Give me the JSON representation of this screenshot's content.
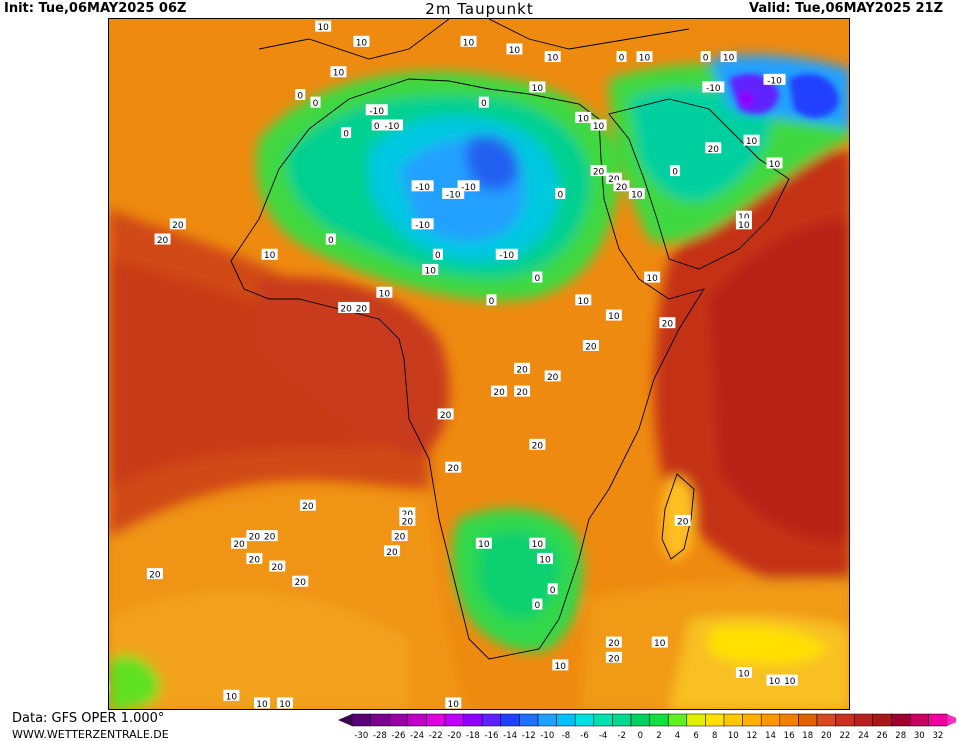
{
  "header": {
    "init": "Init: Tue,06MAY2025 06Z",
    "title": "2m Taupunkt",
    "valid": "Valid: Tue,06MAY2025 21Z"
  },
  "footer": {
    "source": "Data: GFS OPER 1.000°",
    "site": "WWW.WETTERZENTRALE.DE"
  },
  "legend": {
    "ticks": [
      "-30",
      "-28",
      "-26",
      "-24",
      "-22",
      "-20",
      "-18",
      "-16",
      "-14",
      "-12",
      "-10",
      "-8",
      "-6",
      "-4",
      "-2",
      "0",
      "2",
      "4",
      "6",
      "8",
      "10",
      "12",
      "14",
      "16",
      "18",
      "20",
      "22",
      "24",
      "26",
      "28",
      "30",
      "32"
    ],
    "colors": [
      "#5a0078",
      "#7a0090",
      "#9a00a8",
      "#c000c8",
      "#e000e0",
      "#c000ff",
      "#9000ff",
      "#6020ff",
      "#2040ff",
      "#2070ff",
      "#20a0ff",
      "#00c0ff",
      "#00e0e0",
      "#00e0b0",
      "#00d890",
      "#00d060",
      "#10e040",
      "#60f020",
      "#e0f000",
      "#ffe000",
      "#ffc800",
      "#ffb000",
      "#ff9800",
      "#f08000",
      "#e06000",
      "#d84820",
      "#c83020",
      "#b82020",
      "#a81818",
      "#a00030",
      "#c80060",
      "#f000a0"
    ]
  },
  "map": {
    "contour_labels": [
      {
        "text": "10",
        "lon": -7,
        "lat": 39
      },
      {
        "text": "10",
        "lon": -2,
        "lat": 37
      },
      {
        "text": "10",
        "lon": 12,
        "lat": 37
      },
      {
        "text": "10",
        "lon": 18,
        "lat": 36
      },
      {
        "text": "10",
        "lon": 23,
        "lat": 35
      },
      {
        "text": "0",
        "lon": 32,
        "lat": 35
      },
      {
        "text": "10",
        "lon": 35,
        "lat": 35
      },
      {
        "text": "0",
        "lon": 43,
        "lat": 35
      },
      {
        "text": "10",
        "lon": 46,
        "lat": 35
      },
      {
        "text": "-10",
        "lon": 44,
        "lat": 31
      },
      {
        "text": "-10",
        "lon": 52,
        "lat": 32
      },
      {
        "text": "10",
        "lon": -5,
        "lat": 33
      },
      {
        "text": "0",
        "lon": -10,
        "lat": 30
      },
      {
        "text": "0",
        "lon": -8,
        "lat": 29
      },
      {
        "text": "-10",
        "lon": 0,
        "lat": 28
      },
      {
        "text": "0",
        "lon": 0,
        "lat": 26
      },
      {
        "text": "-10",
        "lon": 2,
        "lat": 26
      },
      {
        "text": "0",
        "lon": -4,
        "lat": 25
      },
      {
        "text": "0",
        "lon": 14,
        "lat": 29
      },
      {
        "text": "10",
        "lon": 21,
        "lat": 31
      },
      {
        "text": "10",
        "lon": 27,
        "lat": 27
      },
      {
        "text": "10",
        "lon": 29,
        "lat": 26
      },
      {
        "text": "20",
        "lon": 29,
        "lat": 20
      },
      {
        "text": "20",
        "lon": 31,
        "lat": 19
      },
      {
        "text": "20",
        "lon": 32,
        "lat": 18
      },
      {
        "text": "10",
        "lon": 34,
        "lat": 17
      },
      {
        "text": "0",
        "lon": 39,
        "lat": 20
      },
      {
        "text": "20",
        "lon": 44,
        "lat": 23
      },
      {
        "text": "10",
        "lon": 49,
        "lat": 24
      },
      {
        "text": "10",
        "lon": 52,
        "lat": 21
      },
      {
        "text": "-10",
        "lon": 6,
        "lat": 18
      },
      {
        "text": "-10",
        "lon": 10,
        "lat": 17
      },
      {
        "text": "-10",
        "lon": 12,
        "lat": 18
      },
      {
        "text": "0",
        "lon": 24,
        "lat": 17
      },
      {
        "text": "10",
        "lon": 48,
        "lat": 14
      },
      {
        "text": "10",
        "lon": 48,
        "lat": 13
      },
      {
        "text": "-10",
        "lon": 6,
        "lat": 13
      },
      {
        "text": "0",
        "lon": -6,
        "lat": 11
      },
      {
        "text": "20",
        "lon": -26,
        "lat": 13
      },
      {
        "text": "20",
        "lon": -28,
        "lat": 11
      },
      {
        "text": "10",
        "lon": -14,
        "lat": 9
      },
      {
        "text": "0",
        "lon": 8,
        "lat": 9
      },
      {
        "text": "-10",
        "lon": 17,
        "lat": 9
      },
      {
        "text": "10",
        "lon": 7,
        "lat": 7
      },
      {
        "text": "0",
        "lon": 21,
        "lat": 6
      },
      {
        "text": "10",
        "lon": 36,
        "lat": 6
      },
      {
        "text": "10",
        "lon": 1,
        "lat": 4
      },
      {
        "text": "0",
        "lon": 15,
        "lat": 3
      },
      {
        "text": "10",
        "lon": 27,
        "lat": 3
      },
      {
        "text": "20",
        "lon": -4,
        "lat": 2
      },
      {
        "text": "20",
        "lon": -2,
        "lat": 2
      },
      {
        "text": "10",
        "lon": 31,
        "lat": 1
      },
      {
        "text": "20",
        "lon": 38,
        "lat": 0
      },
      {
        "text": "20",
        "lon": 28,
        "lat": -3
      },
      {
        "text": "20",
        "lon": 19,
        "lat": -6
      },
      {
        "text": "20",
        "lon": 23,
        "lat": -7
      },
      {
        "text": "20",
        "lon": 16,
        "lat": -9
      },
      {
        "text": "20",
        "lon": 19,
        "lat": -9
      },
      {
        "text": "20",
        "lon": 9,
        "lat": -12
      },
      {
        "text": "20",
        "lon": 21,
        "lat": -16
      },
      {
        "text": "20",
        "lon": 10,
        "lat": -19
      },
      {
        "text": "20",
        "lon": -9,
        "lat": -24
      },
      {
        "text": "20",
        "lon": 4,
        "lat": -25
      },
      {
        "text": "20",
        "lon": 4,
        "lat": -26
      },
      {
        "text": "20",
        "lon": 40,
        "lat": -26
      },
      {
        "text": "20",
        "lon": 3,
        "lat": -28
      },
      {
        "text": "20",
        "lon": -16,
        "lat": -28
      },
      {
        "text": "20",
        "lon": -14,
        "lat": -28
      },
      {
        "text": "20",
        "lon": -18,
        "lat": -29
      },
      {
        "text": "20",
        "lon": 2,
        "lat": -30
      },
      {
        "text": "20",
        "lon": -16,
        "lat": -31
      },
      {
        "text": "20",
        "lon": -13,
        "lat": -32
      },
      {
        "text": "20",
        "lon": -10,
        "lat": -34
      },
      {
        "text": "10",
        "lon": 14,
        "lat": -29
      },
      {
        "text": "10",
        "lon": 21,
        "lat": -29
      },
      {
        "text": "10",
        "lon": 22,
        "lat": -31
      },
      {
        "text": "20",
        "lon": -29,
        "lat": -33
      },
      {
        "text": "0",
        "lon": 23,
        "lat": -35
      },
      {
        "text": "0",
        "lon": 21,
        "lat": -37
      },
      {
        "text": "20",
        "lon": 31,
        "lat": -42
      },
      {
        "text": "20",
        "lon": 31,
        "lat": -44
      },
      {
        "text": "10",
        "lon": 24,
        "lat": -45
      },
      {
        "text": "10",
        "lon": 37,
        "lat": -42
      },
      {
        "text": "10",
        "lon": 48,
        "lat": -46
      },
      {
        "text": "10",
        "lon": 52,
        "lat": -47
      },
      {
        "text": "10",
        "lon": 54,
        "lat": -47
      },
      {
        "text": "10",
        "lon": -36,
        "lat": -48
      },
      {
        "text": "10",
        "lon": -19,
        "lat": -49
      },
      {
        "text": "10",
        "lon": -15,
        "lat": -50
      },
      {
        "text": "10",
        "lon": 10,
        "lat": -50
      },
      {
        "text": "10",
        "lon": -12,
        "lat": -50
      }
    ]
  }
}
